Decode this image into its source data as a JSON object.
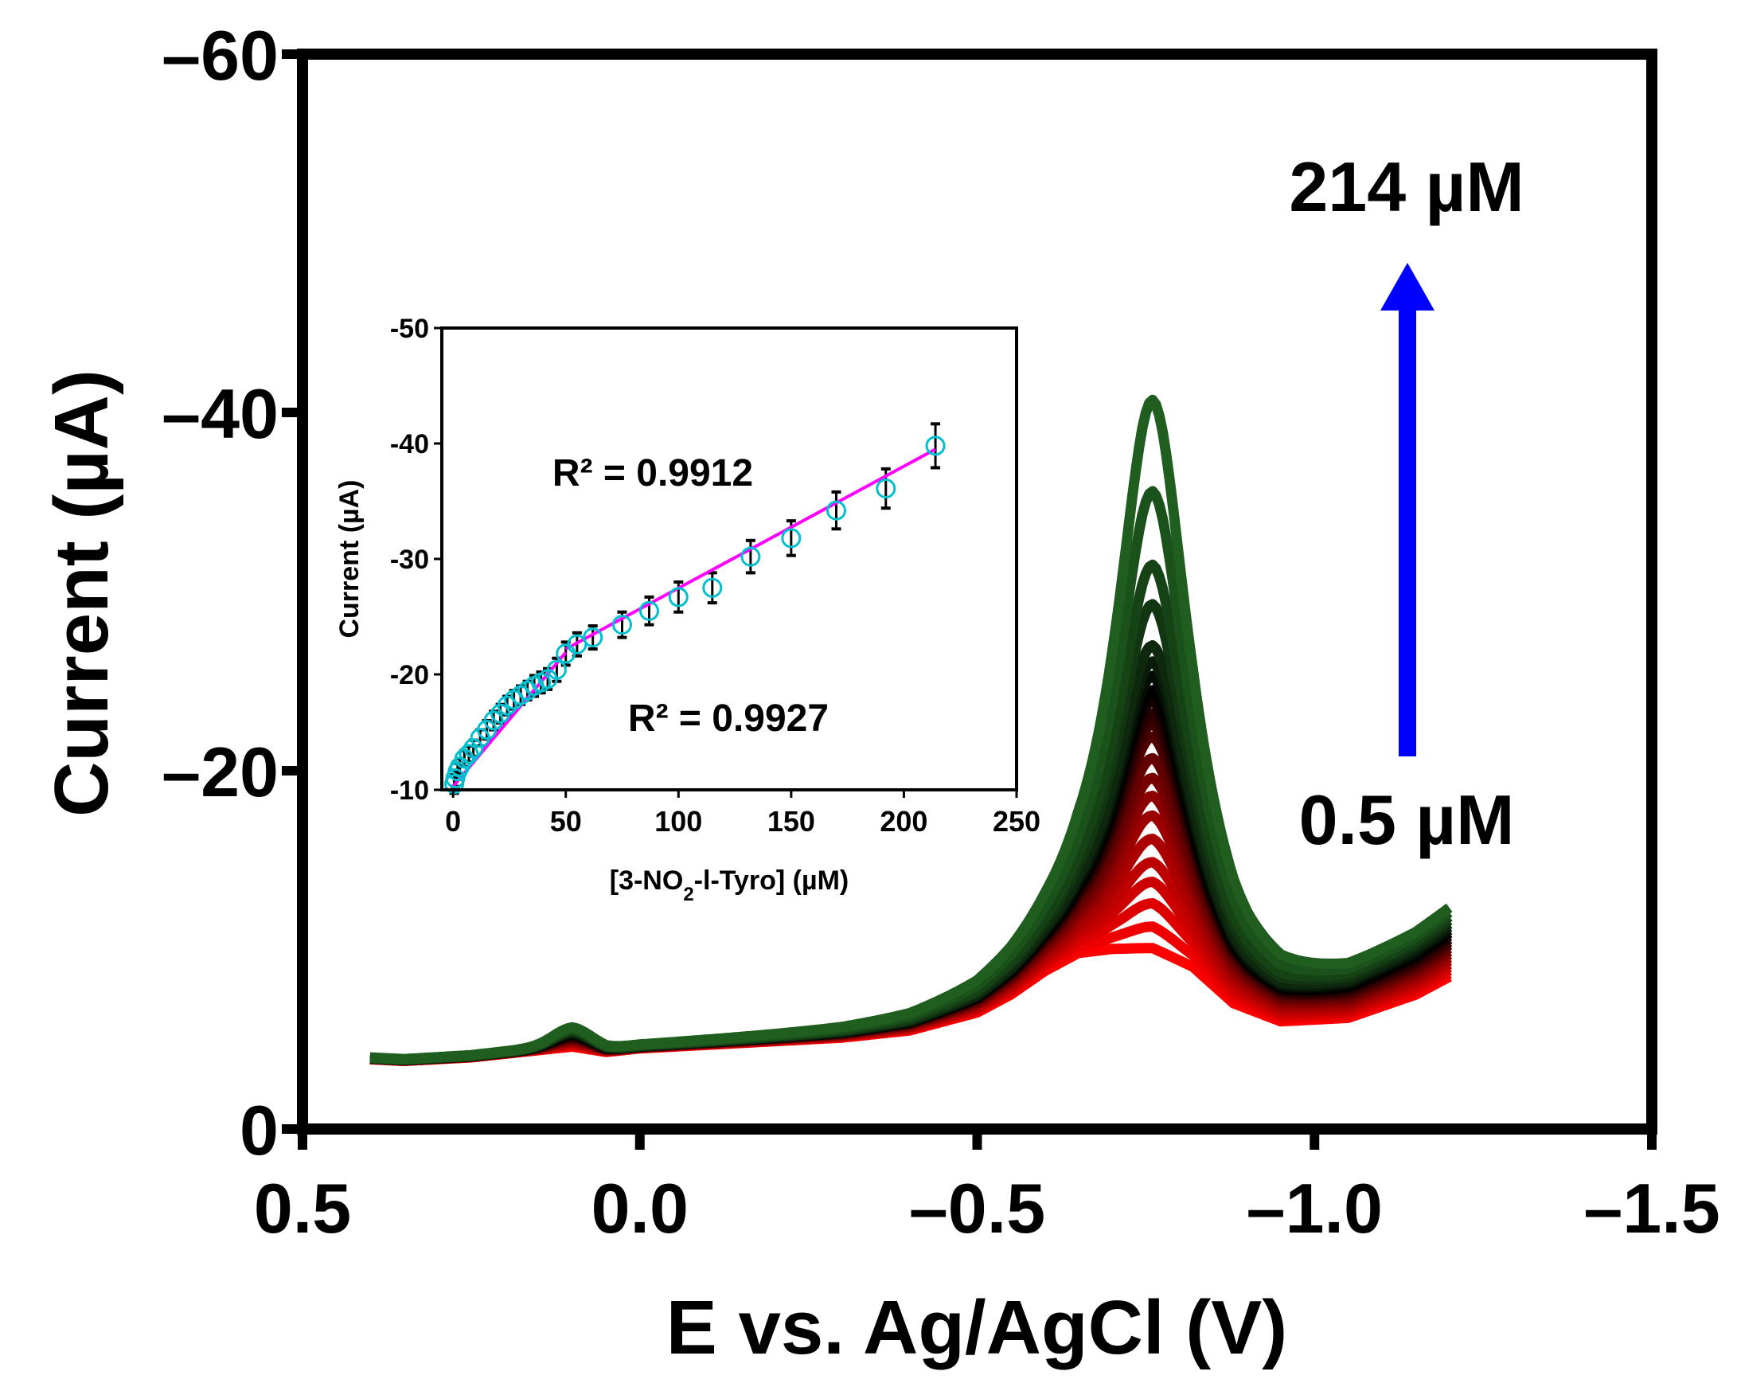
{
  "chart_data": [
    {
      "type": "line",
      "title": "",
      "xlabel": "E vs. Ag/AgCl (V)",
      "ylabel": "Current (µA)",
      "xlim": [
        0.5,
        -1.5
      ],
      "ylim": [
        0,
        -60
      ],
      "x_ticks": [
        "0.5",
        "0.0",
        "–0.5",
        "–1.0",
        "–1.5"
      ],
      "y_ticks": [
        "0",
        "–20",
        "–40",
        "–60"
      ],
      "x_tick_values": [
        0.5,
        0.0,
        -0.5,
        -1.0,
        -1.5
      ],
      "y_tick_values": [
        0,
        -20,
        -40,
        -60
      ],
      "annotations": {
        "high_conc": "214 µM",
        "low_conc": "0.5 µM",
        "arrow": "increasing concentration"
      },
      "series_count": 22,
      "color_scale": [
        "#ff0000",
        "#8b0000",
        "#000000",
        "#1f5e1f"
      ],
      "peak_potential_V": -0.76,
      "peak_currents_uA": [
        -10.1,
        -11.3,
        -12.6,
        -13.8,
        -14.9,
        -16.2,
        -17.5,
        -18.6,
        -19.6,
        -20.7,
        -21.9,
        -22.6,
        -23.2,
        -23.9,
        -24.5,
        -25.3,
        -26.1,
        -27.0,
        -29.3,
        -31.5,
        -35.6,
        -40.7
      ],
      "baseline_curve": {
        "E": [
          0.4,
          0.35,
          0.25,
          0.15,
          0.1,
          0.05,
          0.0,
          -0.1,
          -0.2,
          -0.3,
          -0.4,
          -0.5,
          -0.55,
          -0.6,
          -0.65,
          -0.7,
          -0.76,
          -0.82,
          -0.88,
          -0.95,
          -1.05,
          -1.15,
          -1.2
        ],
        "I": [
          -3.9,
          -3.8,
          -4.0,
          -4.4,
          -4.6,
          -4.3,
          -4.5,
          -4.7,
          -4.9,
          -5.1,
          -5.5,
          -6.5,
          -7.5,
          -8.8,
          -9.8,
          -10.0,
          -10.0,
          -9.0,
          -7.0,
          -6.0,
          -6.2,
          -7.5,
          -8.5
        ]
      }
    },
    {
      "type": "scatter",
      "title": "",
      "xlabel": "[3-NO2-l-Tyro] (µM)",
      "xlabel_parts": {
        "pre": "[3-NO",
        "sub": "2",
        "post": "-l-Tyro] (µM)"
      },
      "ylabel": "Current (µA)",
      "xlim": [
        -5,
        250
      ],
      "ylim": [
        -10,
        -50
      ],
      "x_ticks": [
        "0",
        "50",
        "100",
        "150",
        "200",
        "250"
      ],
      "y_ticks": [
        "-10",
        "-20",
        "-30",
        "-40",
        "-50"
      ],
      "x_tick_values": [
        0,
        50,
        100,
        150,
        200,
        250
      ],
      "y_tick_values": [
        -10,
        -20,
        -30,
        -40,
        -50
      ],
      "x": [
        0.5,
        1,
        2,
        3,
        5,
        7,
        9,
        12,
        15,
        18,
        21,
        24,
        27,
        30,
        33,
        36,
        39,
        42,
        46,
        50,
        55,
        62,
        75,
        87,
        100,
        115,
        132,
        150,
        170,
        192,
        214
      ],
      "y": [
        -10.5,
        -11.0,
        -11.6,
        -12.0,
        -12.7,
        -13.1,
        -13.6,
        -14.5,
        -15.2,
        -16.0,
        -16.6,
        -17.3,
        -17.8,
        -18.2,
        -18.6,
        -19.0,
        -19.3,
        -19.6,
        -20.4,
        -21.8,
        -22.6,
        -23.2,
        -24.3,
        -25.5,
        -26.7,
        -27.5,
        -30.2,
        -31.8,
        -34.2,
        -36.1,
        -39.8
      ],
      "error": [
        0.8,
        0.7,
        0.7,
        0.7,
        0.7,
        0.7,
        0.7,
        0.7,
        0.8,
        0.8,
        0.8,
        0.8,
        0.8,
        0.8,
        0.8,
        0.9,
        0.9,
        0.9,
        1.0,
        1.0,
        1.0,
        1.0,
        1.1,
        1.2,
        1.3,
        1.3,
        1.4,
        1.5,
        1.6,
        1.7,
        1.9
      ],
      "fit_lines": [
        {
          "x": [
            0,
            50
          ],
          "y": [
            -10.3,
            -21.9
          ],
          "r2": "R² = 0.9927"
        },
        {
          "x": [
            50,
            214
          ],
          "y": [
            -22.2,
            -39.5
          ],
          "r2": "R² = 0.9912"
        }
      ],
      "marker_color": "#00c0d0",
      "fit_color": "#ff00ff"
    }
  ]
}
